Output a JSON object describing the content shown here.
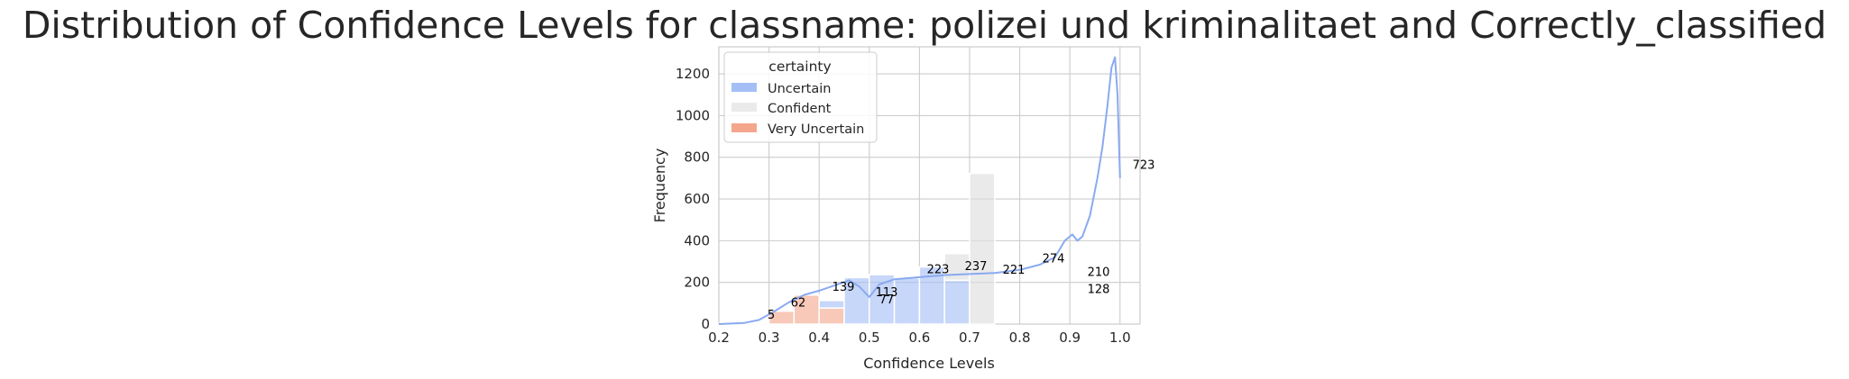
{
  "chart_data": {
    "type": "bar",
    "title": "Distribution of Confidence Levels for classname: polizei und kriminalitaet and Correctly_classified",
    "xlabel": "Confidence Levels",
    "ylabel": "Frequency",
    "xlim": [
      0.2,
      1.04
    ],
    "ylim": [
      0,
      1330
    ],
    "xticks": [
      "0.2",
      "0.3",
      "0.4",
      "0.5",
      "0.6",
      "0.7",
      "0.8",
      "0.9",
      "1.0"
    ],
    "xtick_values": [
      0.2,
      0.3,
      0.4,
      0.5,
      0.6,
      0.7,
      0.8,
      0.9,
      1.0
    ],
    "yticks": [
      "0",
      "200",
      "400",
      "600",
      "800",
      "1000",
      "1200"
    ],
    "ytick_values": [
      0,
      200,
      400,
      600,
      800,
      1000,
      1200
    ],
    "grid": true,
    "legend": {
      "title": "certainty",
      "placement": "upper-left",
      "entries": [
        {
          "name": "Uncertain",
          "color": "#a4bff6"
        },
        {
          "name": "Confident",
          "color": "#dddddd"
        },
        {
          "name": "Very Uncertain",
          "color": "#f4a68c"
        }
      ]
    },
    "bin_edges": [
      0.2,
      0.25,
      0.3,
      0.35,
      0.4,
      0.45,
      0.5,
      0.55,
      0.6,
      0.65,
      0.7,
      0.75,
      0.8,
      0.85,
      0.9,
      0.95,
      1.0
    ],
    "series": [
      {
        "name": "Very Uncertain",
        "color": "#f4a68c",
        "values": [
          2,
          5,
          62,
          139,
          77,
          0,
          0,
          0,
          0,
          0,
          0,
          0,
          0,
          0,
          0,
          0
        ]
      },
      {
        "name": "Uncertain",
        "color": "#a4bff6",
        "values": [
          0,
          0,
          0,
          0,
          36,
          223,
          237,
          221,
          274,
          210,
          0,
          0,
          0,
          0,
          0,
          0
        ]
      },
      {
        "name": "Confident",
        "color": "#dddddd",
        "values": [
          0,
          0,
          0,
          0,
          0,
          0,
          0,
          0,
          0,
          128,
          723,
          0,
          0,
          0,
          0,
          0
        ]
      }
    ],
    "bar_labels": [
      {
        "x": 0.275,
        "y": 5,
        "text": "5"
      },
      {
        "x": 0.325,
        "y": 62,
        "text": "62"
      },
      {
        "x": 0.375,
        "y": 139,
        "text": "139"
      },
      {
        "x": 0.425,
        "y": 113,
        "text": "113"
      },
      {
        "x": 0.425,
        "y": 77,
        "text": "77"
      },
      {
        "x": 0.475,
        "y": 223,
        "text": "223"
      },
      {
        "x": 0.525,
        "y": 237,
        "text": "237"
      },
      {
        "x": 0.575,
        "y": 221,
        "text": "221"
      },
      {
        "x": 0.625,
        "y": 274,
        "text": "274"
      },
      {
        "x": 0.675,
        "y": 210,
        "text": "210"
      },
      {
        "x": 0.675,
        "y": 128,
        "text": "128"
      },
      {
        "x": 0.725,
        "y": 723,
        "text": "723"
      }
    ],
    "kde": {
      "color": "#8aaaf0",
      "x": [
        0.2,
        0.25,
        0.28,
        0.31,
        0.34,
        0.37,
        0.4,
        0.43,
        0.46,
        0.48,
        0.5,
        0.52,
        0.55,
        0.6,
        0.65,
        0.7,
        0.75,
        0.8,
        0.84,
        0.87,
        0.89,
        0.905,
        0.915,
        0.925,
        0.94,
        0.955,
        0.965,
        0.975,
        0.983,
        0.99,
        0.995,
        1.0
      ],
      "y": [
        0,
        5,
        20,
        60,
        105,
        140,
        160,
        185,
        210,
        180,
        130,
        190,
        215,
        225,
        235,
        240,
        245,
        260,
        285,
        320,
        400,
        430,
        400,
        420,
        520,
        700,
        850,
        1050,
        1230,
        1280,
        1100,
        700
      ]
    }
  }
}
